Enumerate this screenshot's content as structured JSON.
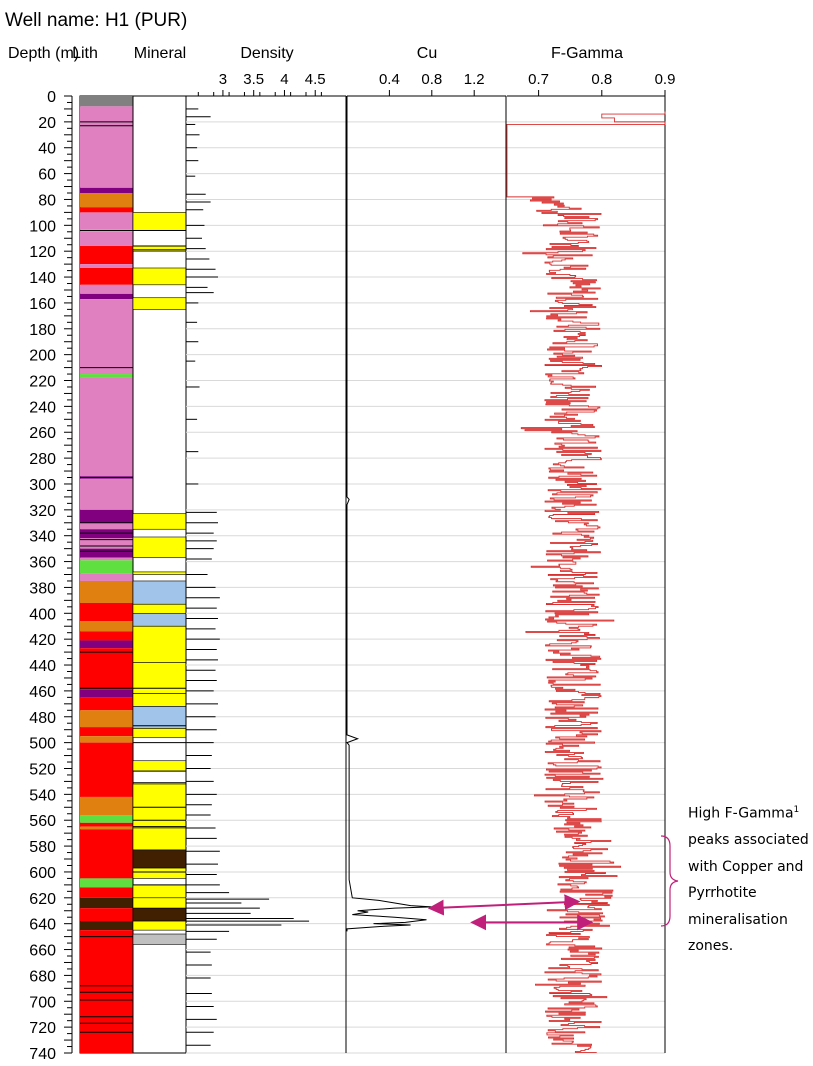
{
  "header": {
    "well_label": "Well name:  H1 (PUR)"
  },
  "columns": {
    "depth": "Depth (m)",
    "lith": "Lith",
    "mineral": "Mineral",
    "density": "Density",
    "cu": "Cu",
    "fgamma": "F-Gamma"
  },
  "annotation": {
    "line1": "High F-Gamma",
    "sup": "1",
    "rest": "peaks associated with Copper and Pyrrhotite mineralisation zones."
  },
  "colors": {
    "grey": "#808080",
    "pink": "#e080c0",
    "purple": "#800080",
    "orange": "#e08010",
    "red": "#ff0000",
    "green": "#60e040",
    "yellow": "#ffff00",
    "lightblue": "#a0c4ea",
    "brown": "#402000",
    "lightgrey": "#c0c0c0",
    "white": "#ffffff",
    "fgamma_line": "#d83030",
    "arrow": "#c0207a"
  },
  "chart_data": {
    "type": "well-log",
    "depth_axis": {
      "label": "Depth (m)",
      "range": [
        0,
        740
      ],
      "ticks": [
        0,
        20,
        40,
        60,
        80,
        100,
        120,
        140,
        160,
        180,
        200,
        220,
        240,
        260,
        280,
        300,
        320,
        340,
        360,
        380,
        400,
        420,
        440,
        460,
        480,
        500,
        520,
        540,
        560,
        580,
        600,
        620,
        640,
        660,
        680,
        700,
        720,
        740
      ]
    },
    "lithology": [
      [
        0,
        8,
        "grey"
      ],
      [
        8,
        71,
        "pink"
      ],
      [
        71,
        75,
        "purple"
      ],
      [
        75,
        86,
        "orange"
      ],
      [
        86,
        90,
        "red"
      ],
      [
        90,
        103,
        "pink"
      ],
      [
        103,
        105,
        "green"
      ],
      [
        105,
        116,
        "pink"
      ],
      [
        116,
        130,
        "red"
      ],
      [
        130,
        133,
        "pink"
      ],
      [
        133,
        146,
        "red"
      ],
      [
        146,
        153,
        "pink"
      ],
      [
        153,
        157,
        "purple"
      ],
      [
        157,
        215,
        "pink"
      ],
      [
        215,
        218,
        "green"
      ],
      [
        218,
        294,
        "pink"
      ],
      [
        294,
        296,
        "purple"
      ],
      [
        296,
        320,
        "pink"
      ],
      [
        320,
        330,
        "purple"
      ],
      [
        330,
        335,
        "pink"
      ],
      [
        335,
        342,
        "purple"
      ],
      [
        342,
        350,
        "pink"
      ],
      [
        350,
        357,
        "purple"
      ],
      [
        357,
        359,
        "pink"
      ],
      [
        359,
        369,
        "green"
      ],
      [
        369,
        375,
        "pink"
      ],
      [
        375,
        392,
        "orange"
      ],
      [
        392,
        406,
        "red"
      ],
      [
        406,
        414,
        "orange"
      ],
      [
        414,
        421,
        "red"
      ],
      [
        421,
        427,
        "purple"
      ],
      [
        427,
        459,
        "red"
      ],
      [
        459,
        465,
        "purple"
      ],
      [
        465,
        475,
        "red"
      ],
      [
        475,
        488,
        "orange"
      ],
      [
        488,
        495,
        "red"
      ],
      [
        495,
        500,
        "orange"
      ],
      [
        500,
        542,
        "red"
      ],
      [
        542,
        556,
        "orange"
      ],
      [
        556,
        562,
        "green"
      ],
      [
        562,
        565,
        "red"
      ],
      [
        565,
        567,
        "orange"
      ],
      [
        567,
        605,
        "red"
      ],
      [
        605,
        612,
        "green"
      ],
      [
        612,
        620,
        "red"
      ],
      [
        620,
        628,
        "brown"
      ],
      [
        628,
        638,
        "red"
      ],
      [
        638,
        645,
        "brown"
      ],
      [
        645,
        740,
        "red"
      ]
    ],
    "lith_thin_lines": [
      20,
      23,
      104,
      210,
      295,
      330,
      338,
      343,
      348,
      352,
      430,
      458,
      650,
      688,
      693,
      699,
      712,
      717,
      724
    ],
    "mineral": [
      [
        90,
        104,
        "yellow"
      ],
      [
        116,
        120,
        "yellow"
      ],
      [
        133,
        146,
        "yellow"
      ],
      [
        156,
        165,
        "yellow"
      ],
      [
        323,
        335,
        "yellow"
      ],
      [
        341,
        357,
        "yellow"
      ],
      [
        368,
        370,
        "yellow"
      ],
      [
        375,
        393,
        "lightblue"
      ],
      [
        393,
        400,
        "yellow"
      ],
      [
        400,
        410,
        "lightblue"
      ],
      [
        410,
        438,
        "yellow"
      ],
      [
        438,
        462,
        "yellow"
      ],
      [
        462,
        472,
        "yellow"
      ],
      [
        472,
        489,
        "lightblue"
      ],
      [
        489,
        496,
        "yellow"
      ],
      [
        514,
        522,
        "yellow"
      ],
      [
        532,
        566,
        "yellow"
      ],
      [
        566,
        583,
        "yellow"
      ],
      [
        583,
        597,
        "brown"
      ],
      [
        597,
        605,
        "yellow"
      ],
      [
        610,
        620,
        "yellow"
      ],
      [
        620,
        628,
        "yellow"
      ],
      [
        628,
        638,
        "brown"
      ],
      [
        638,
        645,
        "yellow"
      ],
      [
        648,
        656,
        "lightgrey"
      ]
    ],
    "mineral_thin_lines": [
      104,
      116,
      119,
      458,
      487,
      500,
      522,
      531,
      550,
      560,
      565,
      600,
      610
    ],
    "density": {
      "label": "Density",
      "ticks": [
        3,
        3.5,
        4,
        4.5
      ],
      "range": [
        2.4,
        5.0
      ],
      "spikes": [
        [
          10,
          2.6
        ],
        [
          16,
          2.8
        ],
        [
          22,
          2.55
        ],
        [
          30,
          2.62
        ],
        [
          40,
          2.58
        ],
        [
          50,
          2.6
        ],
        [
          62,
          2.55
        ],
        [
          76,
          2.72
        ],
        [
          82,
          2.8
        ],
        [
          88,
          2.68
        ],
        [
          100,
          2.7
        ],
        [
          110,
          2.66
        ],
        [
          118,
          2.72
        ],
        [
          126,
          2.78
        ],
        [
          134,
          2.88
        ],
        [
          140,
          2.92
        ],
        [
          148,
          2.75
        ],
        [
          152,
          2.85
        ],
        [
          160,
          2.6
        ],
        [
          175,
          2.58
        ],
        [
          190,
          2.6
        ],
        [
          205,
          2.55
        ],
        [
          225,
          2.62
        ],
        [
          250,
          2.58
        ],
        [
          275,
          2.6
        ],
        [
          300,
          2.6
        ],
        [
          322,
          2.9
        ],
        [
          330,
          2.92
        ],
        [
          338,
          2.85
        ],
        [
          344,
          2.9
        ],
        [
          350,
          2.85
        ],
        [
          358,
          2.82
        ],
        [
          370,
          2.75
        ],
        [
          380,
          2.88
        ],
        [
          388,
          2.95
        ],
        [
          396,
          2.9
        ],
        [
          404,
          2.92
        ],
        [
          412,
          2.88
        ],
        [
          420,
          2.95
        ],
        [
          428,
          2.9
        ],
        [
          436,
          2.92
        ],
        [
          444,
          2.88
        ],
        [
          452,
          2.9
        ],
        [
          460,
          2.85
        ],
        [
          470,
          2.92
        ],
        [
          480,
          2.88
        ],
        [
          490,
          2.9
        ],
        [
          500,
          2.85
        ],
        [
          510,
          2.82
        ],
        [
          520,
          2.8
        ],
        [
          530,
          2.85
        ],
        [
          540,
          2.9
        ],
        [
          548,
          2.82
        ],
        [
          556,
          2.8
        ],
        [
          566,
          2.88
        ],
        [
          574,
          2.9
        ],
        [
          584,
          2.95
        ],
        [
          594,
          2.92
        ],
        [
          602,
          2.9
        ],
        [
          610,
          2.95
        ],
        [
          616,
          3.1
        ],
        [
          621,
          3.75
        ],
        [
          624,
          3.3
        ],
        [
          628,
          3.6
        ],
        [
          632,
          3.45
        ],
        [
          636,
          4.15
        ],
        [
          638,
          4.4
        ],
        [
          641,
          3.95
        ],
        [
          646,
          3.1
        ],
        [
          652,
          2.9
        ],
        [
          662,
          2.8
        ],
        [
          672,
          2.82
        ],
        [
          682,
          2.8
        ],
        [
          694,
          2.82
        ],
        [
          704,
          2.85
        ],
        [
          714,
          2.9
        ],
        [
          724,
          2.85
        ],
        [
          734,
          2.8
        ]
      ]
    },
    "cu": {
      "label": "Cu",
      "ticks": [
        0.4,
        0.8,
        1.2
      ],
      "range": [
        0.0,
        1.5
      ],
      "points": [
        [
          0,
          0.0
        ],
        [
          300,
          0.0
        ],
        [
          310,
          0.0
        ],
        [
          312,
          0.02
        ],
        [
          316,
          0.0
        ],
        [
          343,
          0.0
        ],
        [
          490,
          0.0
        ],
        [
          494,
          0.0
        ],
        [
          497,
          0.1
        ],
        [
          500,
          0.0
        ],
        [
          502,
          0.02
        ],
        [
          606,
          0.02
        ],
        [
          620,
          0.05
        ],
        [
          622,
          0.3
        ],
        [
          624,
          0.45
        ],
        [
          626,
          0.6
        ],
        [
          627,
          0.8
        ],
        [
          628,
          0.45
        ],
        [
          630,
          0.1
        ],
        [
          631,
          0.2
        ],
        [
          633,
          0.05
        ],
        [
          635,
          0.45
        ],
        [
          637,
          0.75
        ],
        [
          639,
          0.55
        ],
        [
          640,
          0.25
        ],
        [
          641,
          0.6
        ],
        [
          642,
          0.35
        ],
        [
          644,
          0.0
        ],
        [
          646,
          0.0
        ]
      ]
    },
    "fgamma": {
      "label": "F-Gamma",
      "ticks": [
        0.7,
        0.8,
        0.9
      ],
      "range": [
        0.65,
        0.9
      ],
      "top_depth": 10
    },
    "annotation_arrows": [
      {
        "from": [
          628,
          0.8
        ],
        "to": [
          623,
          0.76
        ]
      },
      {
        "from": [
          639,
          0.97
        ],
        "to": [
          639,
          0.78
        ]
      }
    ]
  }
}
